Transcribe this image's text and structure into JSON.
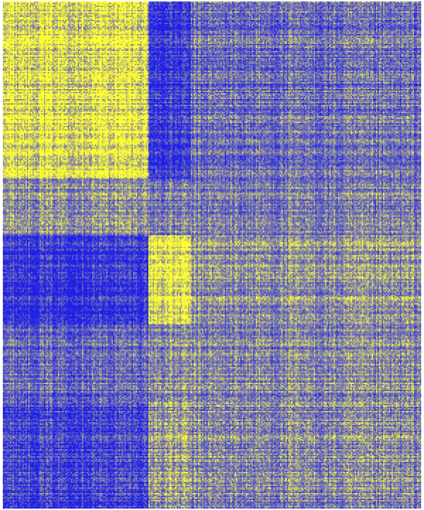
{
  "chart_data": {
    "type": "heatmap",
    "title": "",
    "xlabel": "",
    "ylabel": "",
    "legend": "none",
    "grid": false,
    "color_scale": {
      "low": "#1f1fe6",
      "mid": "#7c7cb0",
      "high": "#ffff33"
    },
    "value_range": [
      -1,
      1
    ],
    "row_clusters": [
      {
        "rows": [
          0,
          250
        ],
        "label": ""
      },
      {
        "rows": [
          250,
          330
        ],
        "label": ""
      },
      {
        "rows": [
          330,
          455
        ],
        "label": ""
      },
      {
        "rows": [
          455,
          565
        ],
        "label": ""
      },
      {
        "rows": [
          565,
          717
        ],
        "label": ""
      }
    ],
    "col_clusters": [
      {
        "cols": [
          0,
          205
        ],
        "label": ""
      },
      {
        "cols": [
          205,
          265
        ],
        "label": ""
      },
      {
        "cols": [
          265,
          592
        ],
        "label": ""
      }
    ],
    "block_means": [
      [
        0.75,
        -0.75,
        -0.2
      ],
      [
        0.15,
        -0.1,
        -0.1
      ],
      [
        -0.7,
        0.8,
        0.15
      ],
      [
        -0.2,
        0.1,
        0.05
      ],
      [
        -0.55,
        0.25,
        0.05
      ]
    ]
  }
}
